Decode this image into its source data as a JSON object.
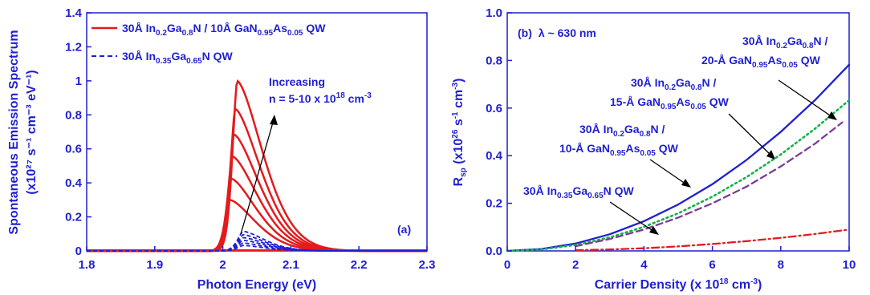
{
  "colors": {
    "axis": "#1f1fd1",
    "red": "#e41a1c",
    "blue_dash": "#1f1fd1",
    "solid_blue": "#1f1fd1",
    "green": "#16b04a",
    "purple": "#7d3c98",
    "red_dashdot": "#e41a1c"
  },
  "chart_data": [
    {
      "type": "line",
      "panel_label": "(a)",
      "xlabel": "Photon Energy (eV)",
      "ylabel_line1": "Spontaneous Emission Spectrum",
      "ylabel_line2": "(x10²⁷ s⁻¹ cm⁻³ eV⁻¹)",
      "xlim": [
        1.8,
        2.3
      ],
      "ylim": [
        0,
        1.4
      ],
      "x_ticks": [
        "1.8",
        "1.9",
        "2",
        "2.1",
        "2.2",
        "2.3"
      ],
      "y_ticks": [
        "0",
        "0.2",
        "0.4",
        "0.6",
        "0.8",
        "1",
        "1.2",
        "1.4"
      ],
      "legend": [
        {
          "label": "30Å In0.2Ga0.8N / 10Å GaN0.95As0.05 QW",
          "style": "solid",
          "color": "#e41a1c"
        },
        {
          "label": "30Å In0.35Ga0.65N QW",
          "style": "dashed",
          "color": "#1f1fd1"
        }
      ],
      "annotation": {
        "line1": "Increasing",
        "line2": "n = 5-10 x 10¹⁸ cm⁻³"
      },
      "series": [
        {
          "group": "InGaN/GaNAs",
          "peak_x": 2.021,
          "peak": 1.0
        },
        {
          "group": "InGaN/GaNAs",
          "peak_x": 2.018,
          "peak": 0.835
        },
        {
          "group": "InGaN/GaNAs",
          "peak_x": 2.016,
          "peak": 0.685
        },
        {
          "group": "InGaN/GaNAs",
          "peak_x": 2.014,
          "peak": 0.555
        },
        {
          "group": "InGaN/GaNAs",
          "peak_x": 2.012,
          "peak": 0.425
        },
        {
          "group": "InGaN/GaNAs",
          "peak_x": 2.01,
          "peak": 0.3
        },
        {
          "group": "InGaN",
          "peak_x": 2.03,
          "peak": 0.115
        },
        {
          "group": "InGaN",
          "peak_x": 2.03,
          "peak": 0.095
        },
        {
          "group": "InGaN",
          "peak_x": 2.03,
          "peak": 0.078
        },
        {
          "group": "InGaN",
          "peak_x": 2.03,
          "peak": 0.062
        },
        {
          "group": "InGaN",
          "peak_x": 2.03,
          "peak": 0.046
        },
        {
          "group": "InGaN",
          "peak_x": 2.03,
          "peak": 0.032
        }
      ]
    },
    {
      "type": "line",
      "panel_label": "(b)",
      "panel_title": "λ ~ 630 nm",
      "xlabel": "Carrier Density (x 10¹⁸ cm⁻³)",
      "ylabel": "Rsp (x10²⁶ s⁻¹ cm⁻³)",
      "xlim": [
        0,
        10
      ],
      "ylim": [
        0,
        1.0
      ],
      "x_ticks": [
        "0",
        "2",
        "4",
        "6",
        "8",
        "10"
      ],
      "y_ticks": [
        "0.0",
        "0.2",
        "0.4",
        "0.6",
        "0.8",
        "1.0"
      ],
      "series": [
        {
          "name": "30Å In0.2Ga0.8N / 20-Å GaN0.95As0.05 QW",
          "style": "solid",
          "color": "#1f1fd1",
          "x": [
            0,
            1,
            2,
            3,
            4,
            5,
            6,
            7,
            8,
            9,
            10
          ],
          "y": [
            0,
            0.008,
            0.031,
            0.07,
            0.125,
            0.195,
            0.28,
            0.382,
            0.5,
            0.633,
            0.782
          ]
        },
        {
          "name": "30Å In0.2Ga0.8N / 15-Å GaN0.95As0.05 QW",
          "style": "dotted",
          "color": "#16b04a",
          "x": [
            0,
            1,
            2,
            3,
            4,
            5,
            6,
            7,
            8,
            9,
            10
          ],
          "y": [
            0,
            0.006,
            0.025,
            0.057,
            0.101,
            0.158,
            0.228,
            0.31,
            0.405,
            0.513,
            0.633
          ]
        },
        {
          "name": "30Å In0.2Ga0.8N / 10-Å GaN0.95As0.05 QW",
          "style": "dashed",
          "color": "#7d3c98",
          "x": [
            2,
            3,
            4,
            5,
            6,
            7,
            8,
            9,
            9.8
          ],
          "y": [
            0.02,
            0.05,
            0.09,
            0.14,
            0.2,
            0.27,
            0.355,
            0.45,
            0.54
          ]
        },
        {
          "name": "30Å In0.35Ga0.65N QW",
          "style": "dashdot",
          "color": "#e41a1c",
          "x": [
            2,
            3,
            4,
            5,
            6,
            7,
            8,
            9,
            10
          ],
          "y": [
            0.003,
            0.006,
            0.011,
            0.019,
            0.029,
            0.041,
            0.055,
            0.071,
            0.09
          ]
        }
      ]
    }
  ]
}
